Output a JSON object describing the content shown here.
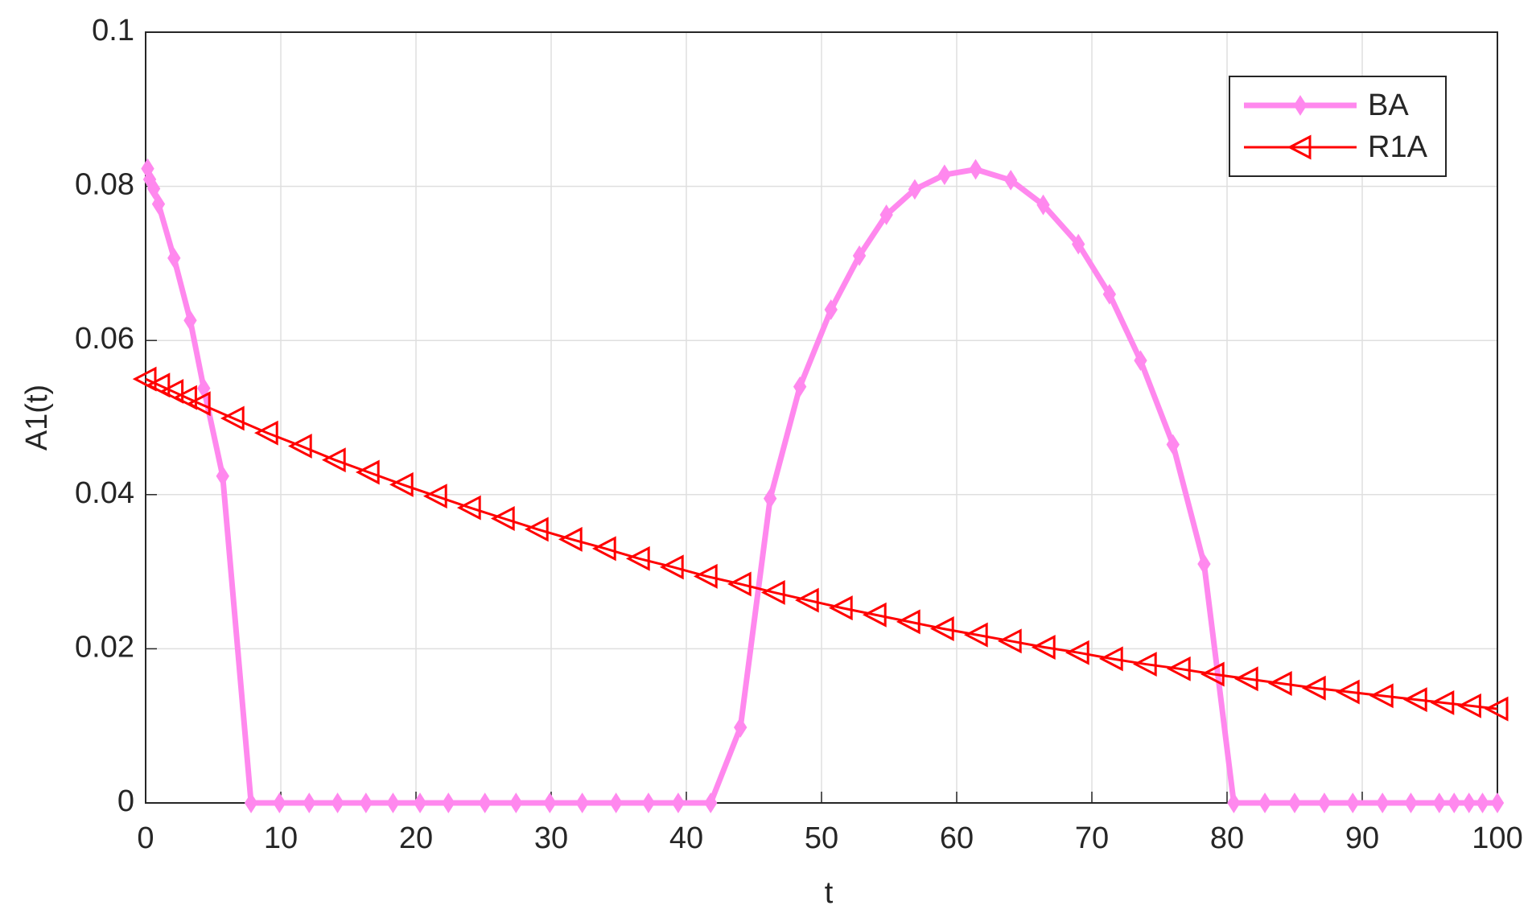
{
  "chart_data": {
    "type": "line",
    "xlabel": "t",
    "ylabel": "A1(t)",
    "xlim": [
      0,
      100
    ],
    "ylim": [
      0,
      0.1
    ],
    "xticks": [
      0,
      10,
      20,
      30,
      40,
      50,
      60,
      70,
      80,
      90,
      100
    ],
    "yticks": [
      0,
      0.02,
      0.04,
      0.06,
      0.08,
      0.1
    ],
    "grid": true,
    "legend": "upper right",
    "series": [
      {
        "name": "BA",
        "color": "#ff88ee",
        "marker": "diamond",
        "x": [
          0.15,
          0.3,
          0.6,
          0.95,
          2.1,
          3.3,
          4.3,
          5.7,
          7.8,
          9.9,
          12.1,
          14.2,
          16.3,
          18.3,
          20.3,
          22.4,
          25.1,
          27.4,
          29.9,
          32.3,
          34.8,
          37.2,
          39.4,
          41.8,
          44.0,
          46.2,
          48.4,
          50.7,
          52.8,
          54.8,
          56.9,
          59.1,
          61.4,
          64.0,
          66.4,
          69.0,
          71.3,
          73.6,
          76.0,
          78.3,
          80.5,
          82.8,
          85.0,
          87.2,
          89.3,
          91.5,
          93.6,
          95.7,
          96.8,
          97.9,
          98.9,
          100
        ],
        "values": [
          0.0823,
          0.0809,
          0.0797,
          0.0777,
          0.0707,
          0.0626,
          0.0538,
          0.0424,
          0,
          0,
          0,
          0,
          0,
          0,
          0,
          0,
          0,
          0,
          0,
          0,
          0,
          0,
          0,
          0,
          0.0098,
          0.0395,
          0.054,
          0.064,
          0.071,
          0.0763,
          0.0796,
          0.0815,
          0.0822,
          0.0808,
          0.0776,
          0.0725,
          0.066,
          0.0574,
          0.0465,
          0.031,
          0,
          0,
          0,
          0,
          0,
          0,
          0,
          0,
          0,
          0,
          0,
          0
        ]
      },
      {
        "name": "R1A",
        "color": "#ff0000",
        "marker": "triangle-left",
        "x": [
          0,
          1,
          2,
          3,
          4,
          6.5,
          9,
          11.5,
          14,
          16.5,
          19,
          21.5,
          24,
          26.5,
          29,
          31.5,
          34,
          36.5,
          39,
          41.5,
          44,
          46.5,
          49,
          51.5,
          54,
          56.5,
          59,
          61.5,
          64,
          66.5,
          69,
          71.5,
          74,
          76.5,
          79,
          81.5,
          84,
          86.5,
          89,
          91.5,
          94,
          96,
          98,
          100
        ],
        "values": [
          0.055,
          0.0542,
          0.0534,
          0.0526,
          0.0518,
          0.0499,
          0.048,
          0.0463,
          0.0445,
          0.0429,
          0.0413,
          0.0398,
          0.0383,
          0.0369,
          0.0355,
          0.0342,
          0.033,
          0.0317,
          0.0306,
          0.0294,
          0.0284,
          0.0273,
          0.0263,
          0.0253,
          0.0244,
          0.0235,
          0.0226,
          0.0218,
          0.021,
          0.0202,
          0.0195,
          0.0187,
          0.018,
          0.0174,
          0.0167,
          0.0161,
          0.0155,
          0.0149,
          0.0144,
          0.0139,
          0.0134,
          0.013,
          0.0126,
          0.0122
        ]
      }
    ]
  }
}
